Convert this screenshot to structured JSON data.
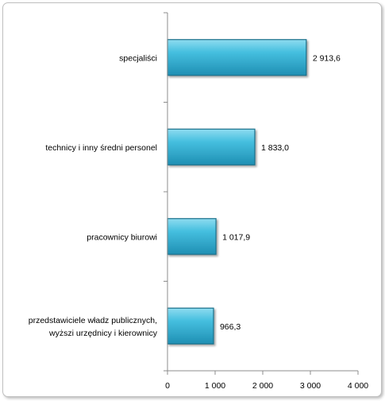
{
  "chart_data": {
    "type": "bar",
    "orientation": "horizontal",
    "categories": [
      "specjaliści",
      "technicy i inny średni personel",
      "pracownicy biurowi",
      "przedstawiciele władz publicznych, wyższi urzędnicy i kierownicy"
    ],
    "category_lines": [
      [
        "specjaliści"
      ],
      [
        "technicy i inny średni personel"
      ],
      [
        "pracownicy biurowi"
      ],
      [
        "przedstawiciele władz publicznych,",
        "wyższi urzędnicy i kierownicy"
      ]
    ],
    "values": [
      2913.6,
      1833.0,
      1017.9,
      966.3
    ],
    "value_labels": [
      "2 913,6",
      "1 833,0",
      "1 017,9",
      "966,3"
    ],
    "xlim": [
      0,
      4000
    ],
    "xticks": [
      0,
      1000,
      2000,
      3000,
      4000
    ],
    "xtick_labels": [
      "0",
      "1 000",
      "2 000",
      "3 000",
      "4 000"
    ],
    "grid": false,
    "legend": "none",
    "bar_color": "#3bb3d3",
    "title": "",
    "xlabel": "",
    "ylabel": ""
  }
}
